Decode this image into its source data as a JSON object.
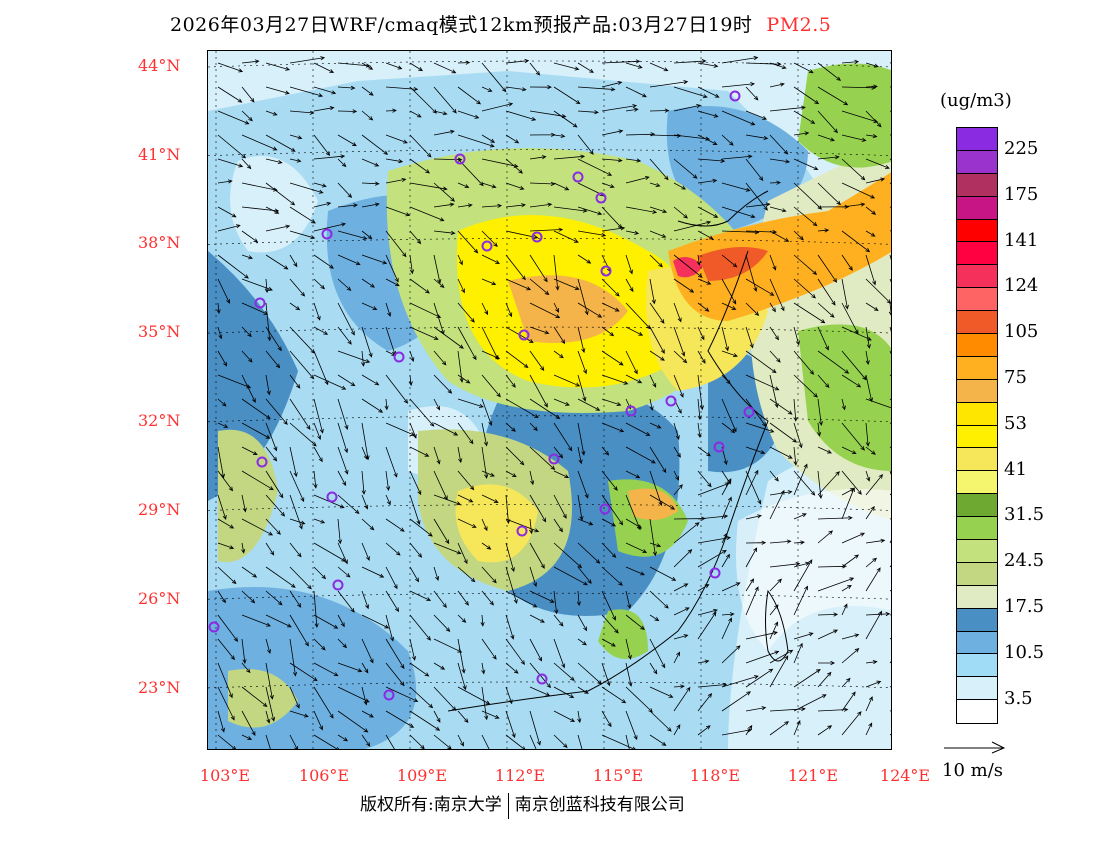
{
  "title": {
    "text": "2026年03月27日WRF/cmaq模式12km预报产品:03月27日19时",
    "variable": "PM2.5"
  },
  "axes": {
    "lat_labels": [
      "44°N",
      "41°N",
      "38°N",
      "35°N",
      "32°N",
      "29°N",
      "26°N",
      "23°N"
    ],
    "lon_labels": [
      "103°E",
      "106°E",
      "109°E",
      "112°E",
      "115°E",
      "118°E",
      "121°E",
      "124°E"
    ]
  },
  "legend": {
    "unit": "(ug/m3)",
    "colors": [
      "#8a2be2",
      "#9a32cd",
      "#b03060",
      "#c71585",
      "#ff0000",
      "#ff0040",
      "#f5305a",
      "#ff6464",
      "#f05a28",
      "#ff8c00",
      "#ffb020",
      "#f5b44a",
      "#ffe600",
      "#fff000",
      "#f5e65a",
      "#f5f56e",
      "#6eaa32",
      "#96d250",
      "#c3e17d",
      "#c3d782",
      "#e1ebc3",
      "#4a8fc4",
      "#6eb0e0",
      "#a0dcf5",
      "#d7f0fa",
      "#ffffff"
    ],
    "labels": [
      "225",
      "175",
      "141",
      "124",
      "105",
      "75",
      "53",
      "41",
      "31.5",
      "24.5",
      "17.5",
      "10.5",
      "3.5"
    ]
  },
  "wind_reference": "10 m/s",
  "footer": {
    "left": "版权所有:南京大学",
    "right": "南京创蓝科技有限公司"
  }
}
